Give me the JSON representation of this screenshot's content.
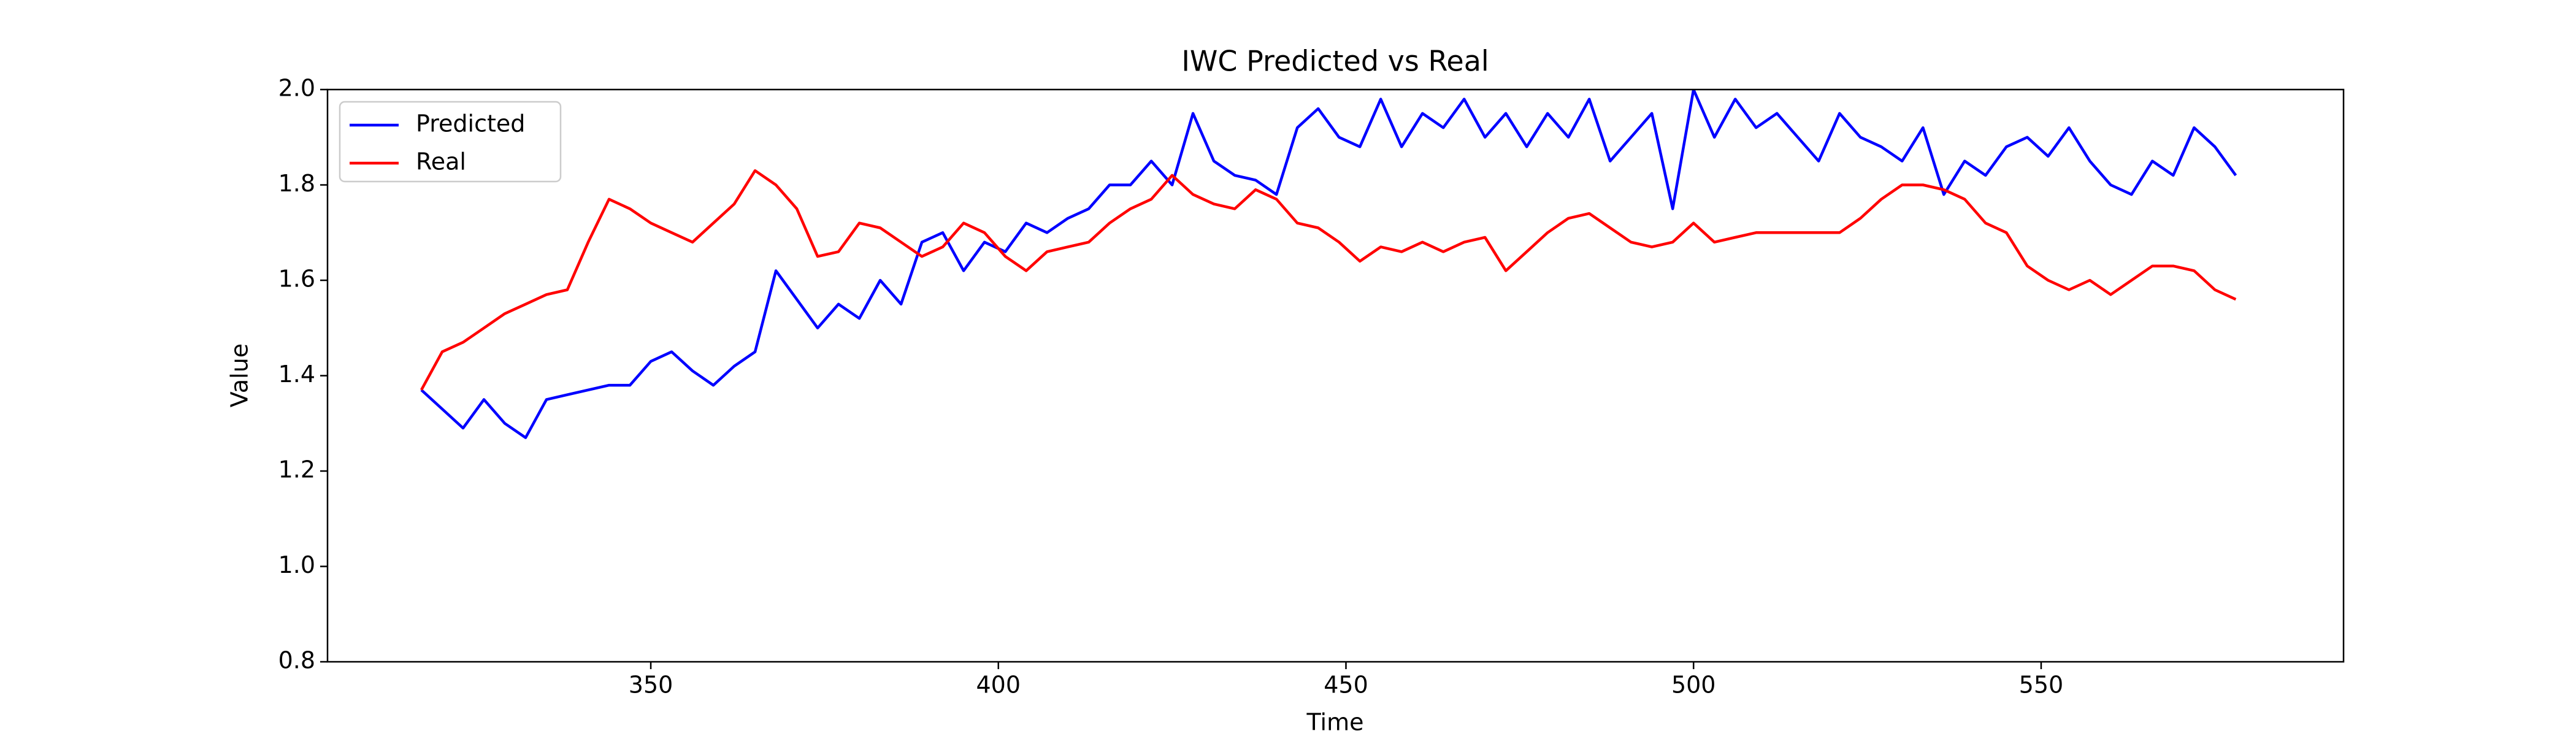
{
  "chart_data": {
    "type": "line",
    "title": "IWC Predicted vs Real",
    "x_label": "Time",
    "y_label": "Value",
    "x": [
      317,
      320,
      323,
      326,
      329,
      332,
      335,
      338,
      341,
      344,
      347,
      350,
      353,
      356,
      359,
      362,
      365,
      368,
      371,
      374,
      377,
      380,
      383,
      386,
      389,
      392,
      395,
      398,
      401,
      404,
      407,
      410,
      413,
      416,
      419,
      422,
      425,
      428,
      431,
      434,
      437,
      440,
      443,
      446,
      449,
      452,
      455,
      458,
      461,
      464,
      467,
      470,
      473,
      476,
      479,
      482,
      485,
      488,
      491,
      494,
      497,
      500,
      503,
      506,
      509,
      512,
      515,
      518,
      521,
      524,
      527,
      530,
      533,
      536,
      539,
      542,
      545,
      548,
      551,
      554,
      557,
      560,
      563,
      566,
      569,
      572,
      575,
      578
    ],
    "series": [
      {
        "name": "Predicted",
        "color": "#0000ff",
        "values": [
          1.37,
          1.33,
          1.29,
          1.35,
          1.3,
          1.27,
          1.35,
          1.36,
          1.37,
          1.38,
          1.38,
          1.43,
          1.45,
          1.41,
          1.38,
          1.42,
          1.45,
          1.62,
          1.56,
          1.5,
          1.55,
          1.52,
          1.6,
          1.55,
          1.68,
          1.7,
          1.62,
          1.68,
          1.66,
          1.72,
          1.7,
          1.73,
          1.75,
          1.8,
          1.8,
          1.85,
          1.8,
          1.95,
          1.85,
          1.82,
          1.81,
          1.78,
          1.92,
          1.96,
          1.9,
          1.88,
          1.98,
          1.88,
          1.95,
          1.92,
          1.98,
          1.9,
          1.95,
          1.88,
          1.95,
          1.9,
          1.98,
          1.85,
          1.9,
          1.95,
          1.75,
          2.0,
          1.9,
          1.98,
          1.92,
          1.95,
          1.9,
          1.85,
          1.95,
          1.9,
          1.88,
          1.85,
          1.92,
          1.78,
          1.85,
          1.82,
          1.88,
          1.9,
          1.86,
          1.92,
          1.85,
          1.8,
          1.78,
          1.85,
          1.82,
          1.92,
          1.88,
          1.82
        ]
      },
      {
        "name": "Real",
        "color": "#ff0000",
        "values": [
          1.37,
          1.45,
          1.47,
          1.5,
          1.53,
          1.55,
          1.57,
          1.58,
          1.68,
          1.77,
          1.75,
          1.72,
          1.7,
          1.68,
          1.72,
          1.76,
          1.83,
          1.8,
          1.75,
          1.65,
          1.66,
          1.72,
          1.71,
          1.68,
          1.65,
          1.67,
          1.72,
          1.7,
          1.65,
          1.62,
          1.66,
          1.67,
          1.68,
          1.72,
          1.75,
          1.77,
          1.82,
          1.78,
          1.76,
          1.75,
          1.79,
          1.77,
          1.72,
          1.71,
          1.68,
          1.64,
          1.67,
          1.66,
          1.68,
          1.66,
          1.68,
          1.69,
          1.62,
          1.66,
          1.7,
          1.73,
          1.74,
          1.71,
          1.68,
          1.67,
          1.68,
          1.72,
          1.68,
          1.69,
          1.7,
          1.7,
          1.7,
          1.7,
          1.7,
          1.73,
          1.77,
          1.8,
          1.8,
          1.79,
          1.77,
          1.72,
          1.7,
          1.63,
          1.6,
          1.58,
          1.6,
          1.57,
          1.6,
          1.63,
          1.63,
          1.62,
          1.58,
          1.56
        ]
      }
    ],
    "xlim": [
      303.5,
      593.5
    ],
    "xticks": [
      350,
      400,
      450,
      500,
      550
    ],
    "ylim": [
      0.8,
      2.0
    ],
    "yticks": [
      0.8,
      {
        "value": 1,
        "label": "1.0"
      },
      1.2,
      1.4,
      1.6,
      1.8,
      {
        "value": 2,
        "label": "2.0"
      }
    ],
    "legend": "upper left"
  }
}
